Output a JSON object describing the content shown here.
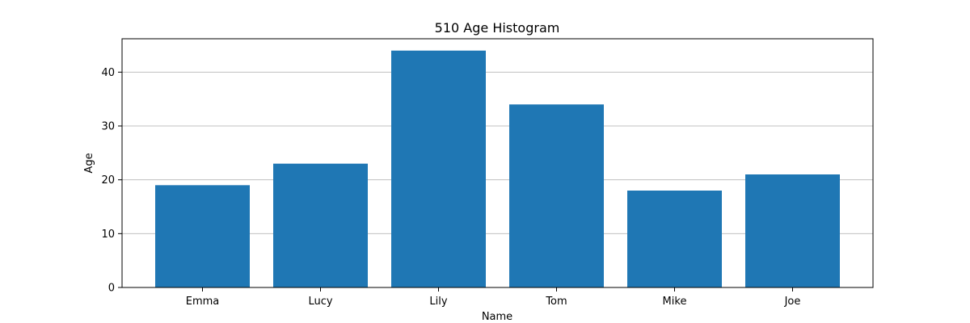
{
  "chart_data": {
    "type": "bar",
    "title": "510 Age Histogram",
    "xlabel": "Name",
    "ylabel": "Age",
    "categories": [
      "Emma",
      "Lucy",
      "Lily",
      "Tom",
      "Mike",
      "Joe"
    ],
    "values": [
      19,
      23,
      44,
      34,
      18,
      21
    ],
    "ylim": [
      0,
      46.2
    ],
    "yticks": [
      0,
      10,
      20,
      30,
      40
    ],
    "ytick_labels": [
      "0",
      "10",
      "20",
      "30",
      "40"
    ],
    "grid": "y-major",
    "bar_color": "#1f77b4",
    "grid_color": "#c0c0c0"
  }
}
